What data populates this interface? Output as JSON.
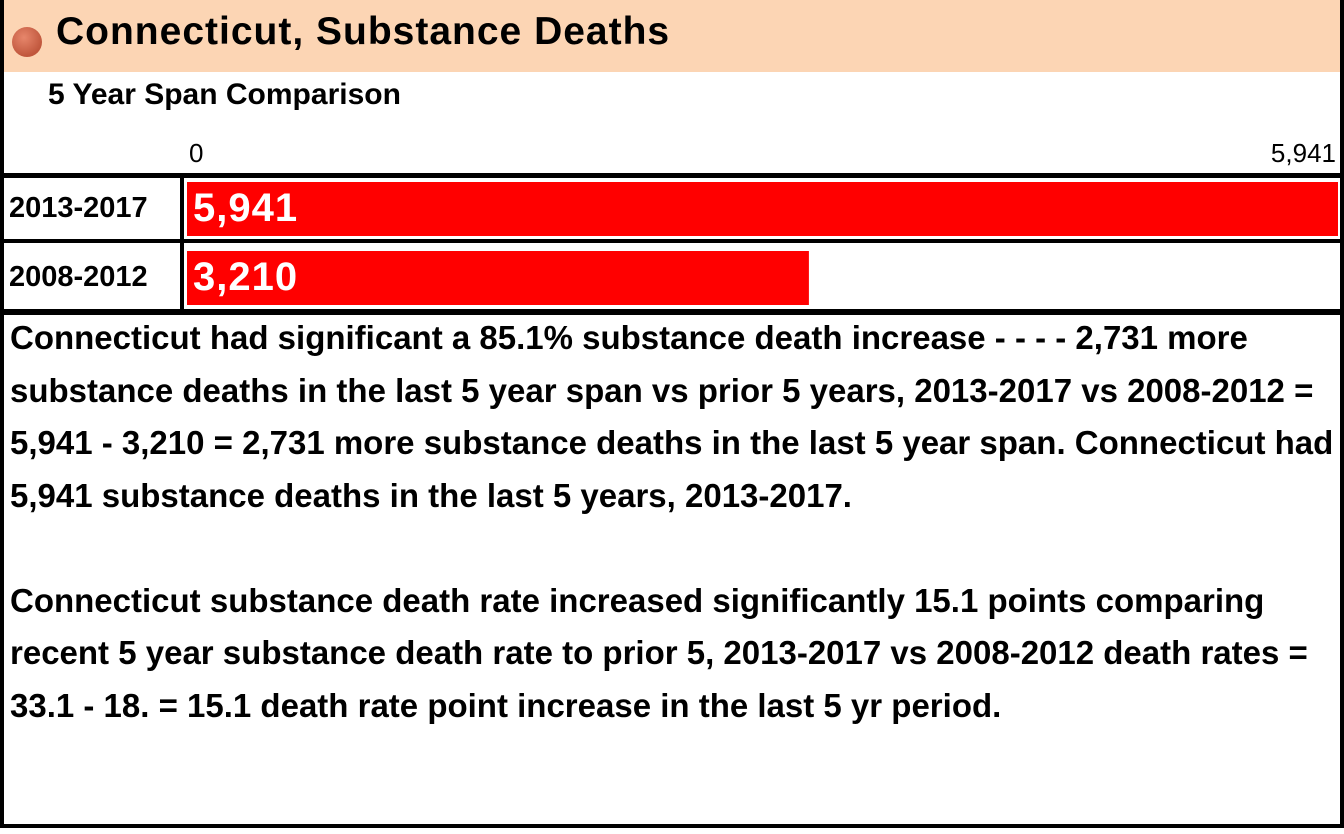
{
  "header": {
    "title": "Connecticut, Substance Deaths",
    "subtitle": "5 Year Span Comparison"
  },
  "colors": {
    "bar": "#ff0000",
    "header_band": "#fcd5b4",
    "header_dot": "#c85f45"
  },
  "chart_data": {
    "type": "bar",
    "orientation": "horizontal",
    "categories": [
      "2013-2017",
      "2008-2012"
    ],
    "values": [
      5941,
      3210
    ],
    "data_labels": [
      "5,941",
      "3,210"
    ],
    "xlim": [
      0,
      5941
    ],
    "tick_labels": [
      "0",
      "5,941"
    ],
    "grid": false
  },
  "paragraphs": [
    "Connecticut had significant a 85.1% substance death increase    - - - - 2,731 more substance deaths in the last 5 year span vs prior 5 years, 2013-2017 vs 2008-2012 = 5,941 - 3,210 = 2,731 more substance deaths in the last 5 year span.  Connecticut had 5,941 substance deaths in the last 5 years, 2013-2017.",
    "Connecticut substance death rate increased significantly 15.1 points comparing recent 5 year substance death rate  to prior 5, 2013-2017 vs 2008-2012 death rates = 33.1 - 18. = 15.1 death rate point increase in the last 5 yr period."
  ]
}
